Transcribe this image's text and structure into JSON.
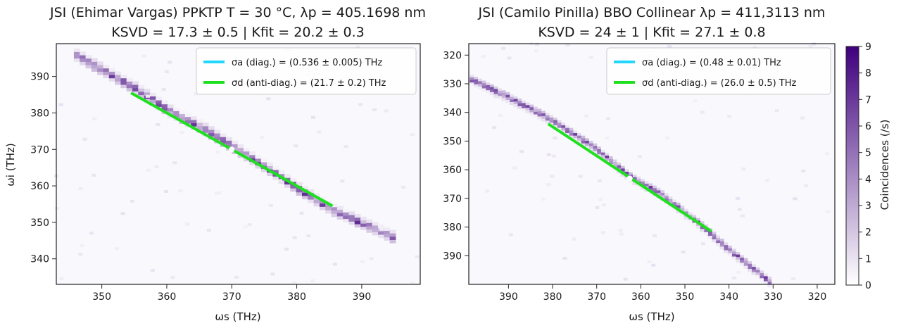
{
  "figure": {
    "colormap": {
      "low": "#ffffff",
      "high": "#3f007d"
    },
    "colorbar": {
      "label": "Coincidences (/s)",
      "range": [
        0,
        9
      ],
      "ticks": [
        "0",
        "1",
        "2",
        "3",
        "4",
        "5",
        "6",
        "7",
        "8",
        "9"
      ]
    }
  },
  "chart_data": [
    {
      "type": "heatmap",
      "title_line1": "JSI (Ehimar Vargas) PPKTP T = 30 °C, λp = 405.1698 nm",
      "title_line2": "KSVD = 17.3 ± 0.5  |  Kfit = 20.2 ± 0.3",
      "xlabel": "ωs (THz)",
      "ylabel": "ωi (THz)",
      "xlim": [
        343,
        399
      ],
      "ylim": [
        333,
        399
      ],
      "x_reversed": false,
      "y_inverted": false,
      "xticks": [
        350,
        360,
        370,
        380,
        390
      ],
      "yticks": [
        340,
        350,
        360,
        370,
        380,
        390
      ],
      "grid": false,
      "legend_position": "top-right",
      "center": [
        370.0,
        370.0
      ],
      "ridge": [
        [
          345,
          396
        ],
        [
          350,
          391
        ],
        [
          355,
          386
        ],
        [
          360,
          380
        ],
        [
          365,
          375.5
        ],
        [
          370,
          370
        ],
        [
          375,
          364.5
        ],
        [
          380,
          358.5
        ],
        [
          385,
          353
        ],
        [
          390,
          349
        ],
        [
          395,
          345
        ]
      ],
      "series": [
        {
          "name": "σa (diag.) = (0.536 ± 0.005) THz",
          "color": "#22d8ff",
          "segment": [
            [
              369.5,
              370.5
            ],
            [
              370.5,
              369.5
            ]
          ]
        },
        {
          "name": "σd (anti-diag.) = (21.7 ± 0.2) THz",
          "color": "#1ee01e",
          "segment": [
            [
              354.5,
              385.5
            ],
            [
              385.5,
              354.5
            ]
          ]
        }
      ]
    },
    {
      "type": "heatmap",
      "title_line1": "JSI (Camilo Pinilla) BBO Collinear λp = 411,3113 nm",
      "title_line2": "KSVD = 24 ± 1  |  Kfit = 27.1 ± 0.8",
      "xlabel": "ωs (THz)",
      "ylabel": "",
      "xlim": [
        399,
        316
      ],
      "ylim": [
        316,
        400
      ],
      "x_reversed": true,
      "y_inverted": true,
      "xticks": [
        390,
        380,
        370,
        360,
        350,
        340,
        330,
        320
      ],
      "yticks": [
        320,
        330,
        340,
        350,
        360,
        370,
        380,
        390
      ],
      "grid": false,
      "legend_position": "top-right",
      "center": [
        362.5,
        363.0
      ],
      "ridge": [
        [
          398,
          328
        ],
        [
          390,
          334
        ],
        [
          380,
          342
        ],
        [
          370,
          352
        ],
        [
          362,
          362
        ],
        [
          355,
          368
        ],
        [
          345,
          380
        ],
        [
          340,
          387
        ],
        [
          335,
          393
        ],
        [
          330,
          399
        ]
      ],
      "series": [
        {
          "name": "σa (diag.) = (0.48 ± 0.01) THz",
          "color": "#22d8ff",
          "segment": [
            [
              362.2,
              362.7
            ],
            [
              362.8,
              363.3
            ]
          ]
        },
        {
          "name": "σd (anti-diag.) = (26.0 ± 0.5) THz",
          "color": "#1ee01e",
          "segment": [
            [
              381,
              344
            ],
            [
              344,
              381.5
            ]
          ]
        }
      ]
    }
  ]
}
